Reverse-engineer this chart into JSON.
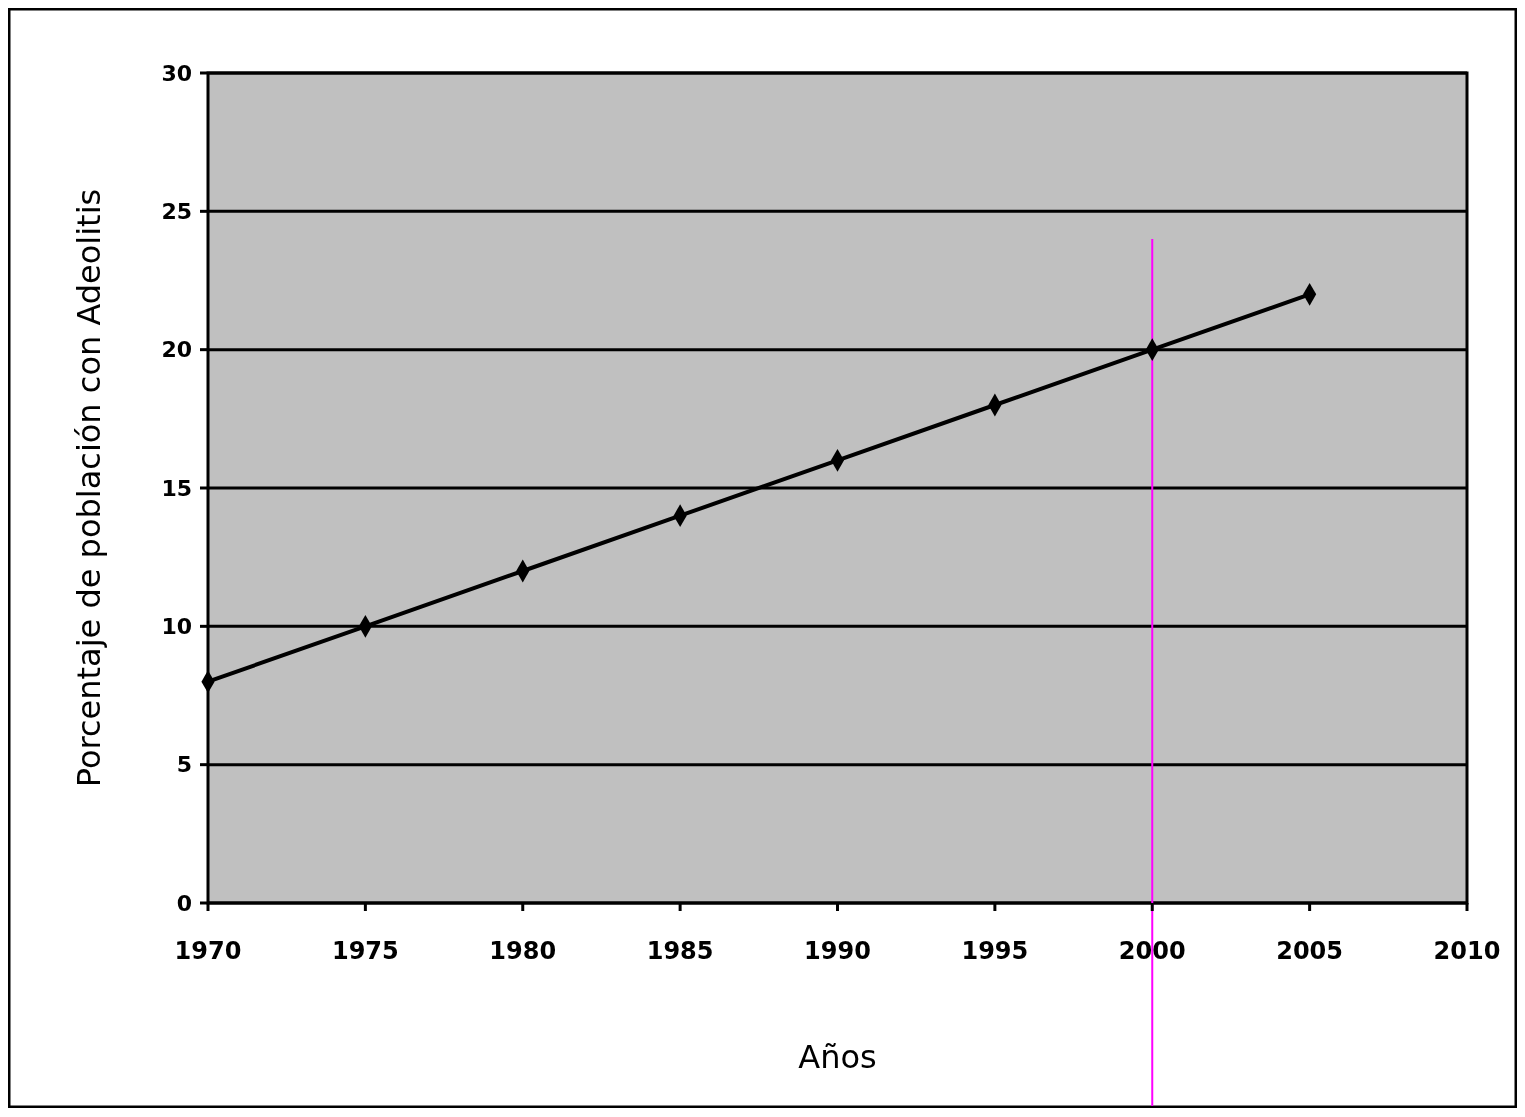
{
  "chart_data": {
    "type": "line",
    "xlabel": "Años",
    "ylabel": "Porcentaje de población con Adeolitis",
    "x": [
      1970,
      1975,
      1980,
      1985,
      1990,
      1995,
      2000,
      2005
    ],
    "series": [
      {
        "color": "#000000",
        "values": [
          8,
          10,
          12,
          14,
          16,
          18,
          20,
          22
        ]
      }
    ],
    "xlim": [
      1970,
      2010
    ],
    "xticks": [
      1970,
      1975,
      1980,
      1985,
      1990,
      1995,
      2000,
      2005,
      2010
    ],
    "ylim": [
      0,
      30
    ],
    "yticks": [
      0,
      5,
      10,
      15,
      20,
      25,
      30
    ],
    "grid": "y",
    "marker": "diamond",
    "ref_lines": [
      {
        "axis": "x",
        "value": 2000,
        "color": "#ff00ff"
      }
    ]
  }
}
